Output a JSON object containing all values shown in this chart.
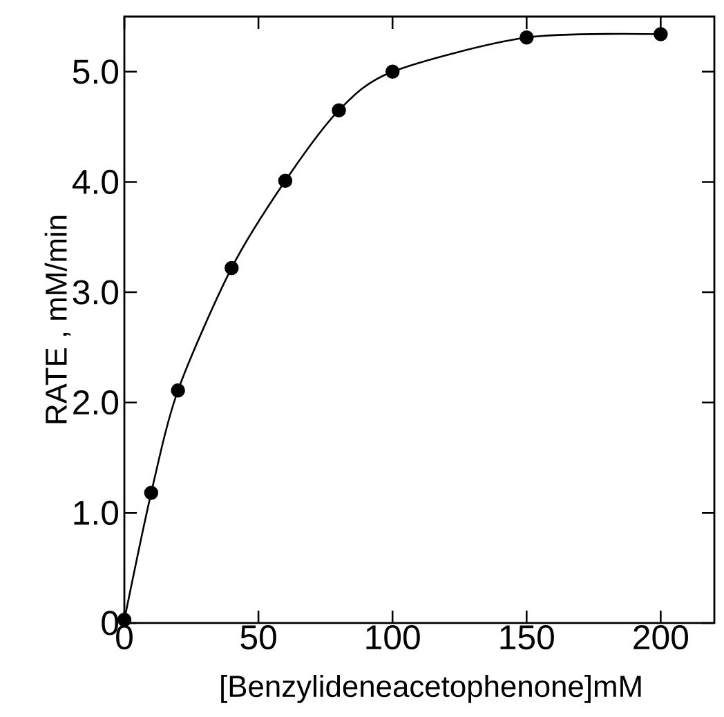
{
  "chart_data": {
    "type": "line",
    "xlabel": "[Benzylideneacetophenone]mM",
    "ylabel": "RATE , mM/min",
    "x": [
      0,
      10,
      20,
      40,
      60,
      80,
      100,
      150,
      200
    ],
    "series": [
      {
        "color": "#000000",
        "values": [
          0.03,
          1.18,
          2.11,
          3.22,
          4.01,
          4.65,
          5.0,
          5.31,
          5.34
        ]
      }
    ],
    "xlim": [
      0,
      220
    ],
    "ylim": [
      0,
      5.5
    ],
    "xticks": [
      0,
      50,
      100,
      150,
      200
    ],
    "yticks": [
      0,
      {
        "value": 1,
        "label": "1.0"
      },
      {
        "value": 2,
        "label": "2.0"
      },
      {
        "value": 3,
        "label": "3.0"
      },
      {
        "value": 4,
        "label": "4.0"
      },
      {
        "value": 5,
        "label": "5.0"
      }
    ],
    "marker": "circle",
    "line_style": "solid"
  }
}
